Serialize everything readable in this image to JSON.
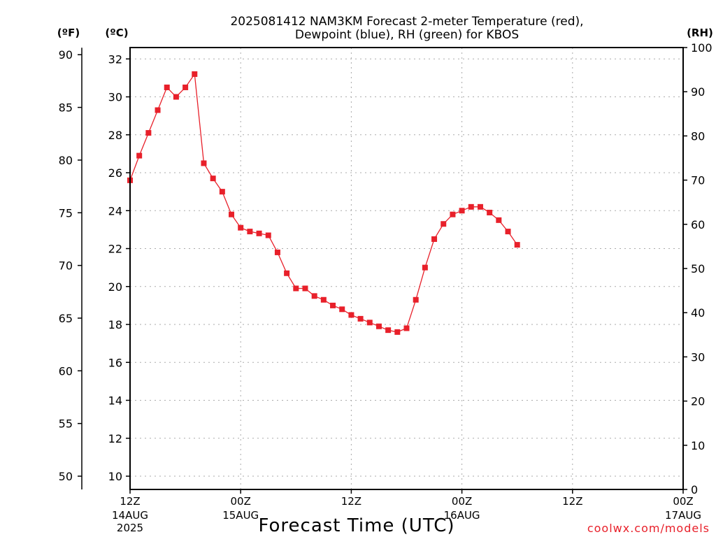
{
  "chart_data": {
    "type": "line",
    "title": "2025081412 NAM3KM Forecast 2-meter Temperature (red),",
    "subtitle": "Dewpoint (blue), RH (green) for KBOS",
    "xlabel": "Forecast Time (UTC)",
    "unit_labels": {
      "fahrenheit": "(ºF)",
      "celsius": "(ºC)",
      "rh": "(RH)"
    },
    "credit": "coolwx.com/models",
    "x_ticks": [
      {
        "hour": 0,
        "line1": "12Z",
        "line2": "14AUG",
        "line3": "2025"
      },
      {
        "hour": 12,
        "line1": "00Z",
        "line2": "15AUG",
        "line3": ""
      },
      {
        "hour": 24,
        "line1": "12Z",
        "line2": "",
        "line3": ""
      },
      {
        "hour": 36,
        "line1": "00Z",
        "line2": "16AUG",
        "line3": ""
      },
      {
        "hour": 48,
        "line1": "12Z",
        "line2": "",
        "line3": ""
      },
      {
        "hour": 60,
        "line1": "00Z",
        "line2": "17AUG",
        "line3": ""
      }
    ],
    "y_celsius_ticks": [
      "10",
      "12",
      "14",
      "16",
      "18",
      "20",
      "22",
      "24",
      "26",
      "28",
      "30",
      "32"
    ],
    "y_fahrenheit_ticks": [
      "50",
      "55",
      "60",
      "65",
      "70",
      "75",
      "80",
      "85",
      "90"
    ],
    "y_rh_ticks": [
      "0",
      "10",
      "20",
      "30",
      "40",
      "50",
      "60",
      "70",
      "80",
      "90",
      "100"
    ],
    "xlim": [
      0,
      60
    ],
    "ylim_celsius": [
      9.3,
      32.6
    ],
    "ylim_rh": [
      0,
      100
    ],
    "colors": {
      "temperature": "#e8202a",
      "dewpoint": "#1f3fe0",
      "rh": "#18c818"
    },
    "series": [
      {
        "name": "2-meter Temperature",
        "axis": "celsius",
        "marker": "filled-square",
        "values": [
          25.6,
          26.9,
          28.1,
          29.3,
          30.5,
          30.0,
          30.5,
          31.2,
          26.5,
          25.7,
          25.0,
          23.8,
          23.1,
          22.9,
          22.8,
          22.7,
          21.8,
          20.7,
          19.9,
          19.9,
          19.5,
          19.3,
          19.0,
          18.8,
          18.5,
          18.3,
          18.1,
          17.9,
          17.7,
          17.6,
          17.8,
          19.3,
          21.0,
          22.5,
          23.3,
          23.8,
          24.0,
          24.2,
          24.2,
          23.9,
          23.5,
          22.9,
          22.2
        ],
        "x": [
          0,
          1,
          2,
          3,
          4,
          5,
          6,
          7,
          8,
          9,
          10,
          11,
          12,
          13,
          14,
          15,
          16,
          17,
          18,
          19,
          20,
          21,
          22,
          23,
          24,
          25,
          26,
          27,
          28,
          29,
          30,
          31,
          32,
          33,
          34,
          35,
          36,
          37,
          38,
          39,
          40,
          41,
          42
        ]
      }
    ]
  }
}
